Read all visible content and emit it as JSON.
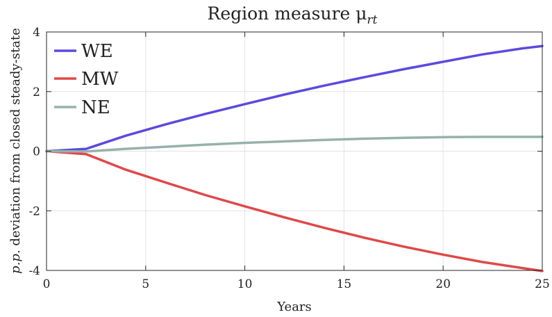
{
  "chart_data": {
    "type": "line",
    "title": "Region measure μ",
    "title_subscript": "rt",
    "xlabel": "Years",
    "ylabel_italic": "p.p.",
    "ylabel_rest": " deviation from closed steady-state",
    "xlim": [
      0,
      25
    ],
    "ylim": [
      -4,
      4
    ],
    "xticks": [
      "0",
      "5",
      "10",
      "15",
      "20",
      "25"
    ],
    "yticks": [
      "4",
      "2",
      "0",
      "-2",
      "-4"
    ],
    "grid": true,
    "legend_position": "top-left",
    "series": [
      {
        "name": "WE",
        "color": "#5b4adf",
        "x": [
          0,
          2,
          4,
          6,
          8,
          10,
          12,
          14,
          16,
          18,
          20,
          22,
          24,
          25
        ],
        "y": [
          0,
          0.08,
          0.52,
          0.9,
          1.25,
          1.58,
          1.9,
          2.2,
          2.48,
          2.75,
          3.0,
          3.25,
          3.45,
          3.53
        ]
      },
      {
        "name": "MW",
        "color": "#e04848",
        "x": [
          0,
          2,
          4,
          6,
          8,
          10,
          12,
          14,
          16,
          18,
          20,
          22,
          24,
          25
        ],
        "y": [
          0,
          -0.1,
          -0.62,
          -1.05,
          -1.47,
          -1.85,
          -2.22,
          -2.57,
          -2.9,
          -3.2,
          -3.47,
          -3.72,
          -3.92,
          -4.02
        ]
      },
      {
        "name": "NE",
        "color": "#97b1ab",
        "x": [
          0,
          2,
          4,
          6,
          8,
          10,
          12,
          14,
          16,
          18,
          20,
          22,
          24,
          25
        ],
        "y": [
          0,
          -0.01,
          0.08,
          0.15,
          0.22,
          0.28,
          0.33,
          0.38,
          0.42,
          0.45,
          0.47,
          0.48,
          0.48,
          0.48
        ]
      }
    ]
  }
}
